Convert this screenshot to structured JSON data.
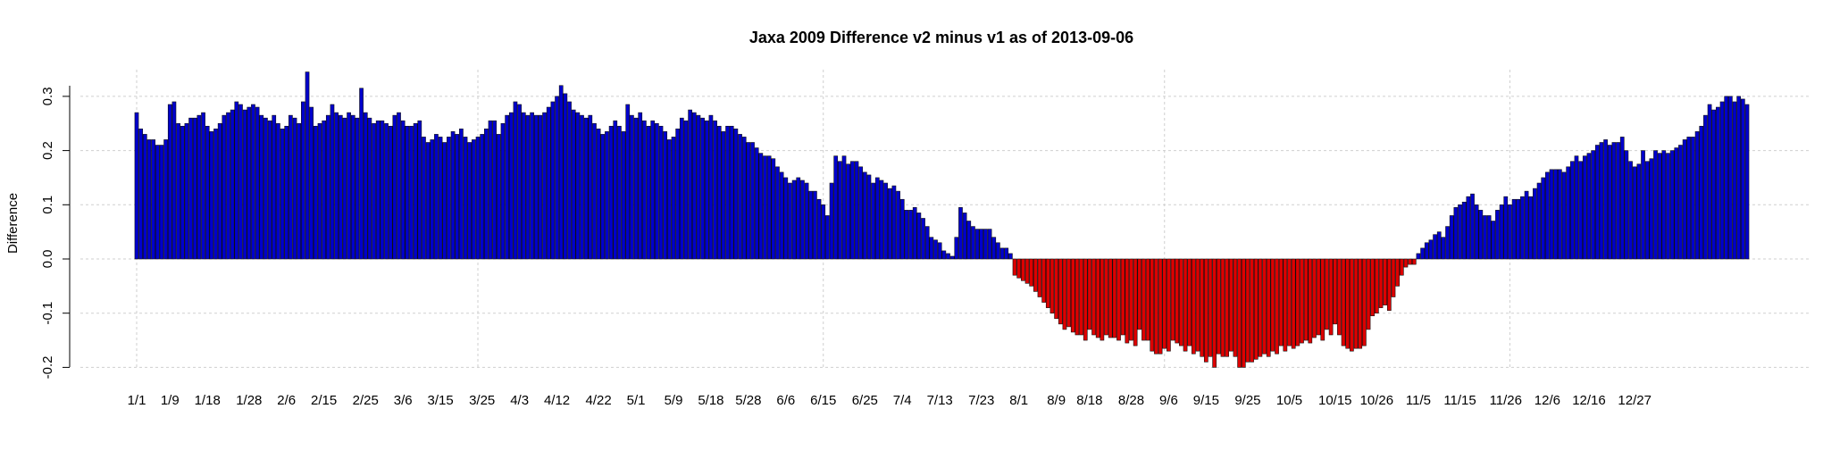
{
  "chart_data": {
    "type": "bar",
    "title": "Jaxa 2009 Difference v2 minus v1 as of 2013-09-06",
    "xlabel": "",
    "ylabel": "Difference",
    "ylim": [
      -0.2,
      0.3
    ],
    "yticks": [
      -0.2,
      -0.1,
      0.0,
      0.1,
      0.2,
      0.3
    ],
    "ytick_labels": [
      "-0.2",
      "-0.1",
      "0.0",
      "0.1",
      "0.2",
      "0.3"
    ],
    "xtick_days": [
      1,
      9,
      18,
      28,
      37,
      46,
      56,
      65,
      74,
      84,
      93,
      102,
      112,
      121,
      130,
      139,
      148,
      157,
      166,
      176,
      185,
      194,
      204,
      213,
      222,
      230,
      240,
      249,
      258,
      268,
      278,
      289,
      299,
      309,
      319,
      330,
      340,
      350,
      361
    ],
    "xtick_labels": [
      "1/1",
      "1/9",
      "1/18",
      "1/28",
      "2/6",
      "2/15",
      "2/25",
      "3/6",
      "3/15",
      "3/25",
      "4/3",
      "4/12",
      "4/22",
      "5/1",
      "5/9",
      "5/18",
      "5/28",
      "6/6",
      "6/15",
      "6/25",
      "7/4",
      "7/13",
      "7/23",
      "8/1",
      "8/9",
      "8/18",
      "8/28",
      "9/6",
      "9/15",
      "9/25",
      "10/5",
      "10/15",
      "10/26",
      "11/5",
      "11/15",
      "11/26",
      "12/6",
      "12/16",
      "12/27"
    ],
    "grid": true,
    "positive_color": "#0000cc",
    "negative_color": "#dd0000",
    "series": [
      {
        "name": "Difference",
        "x_start_label": "1/1",
        "values": [
          0.27,
          0.24,
          0.23,
          0.22,
          0.22,
          0.21,
          0.21,
          0.22,
          0.285,
          0.29,
          0.25,
          0.245,
          0.25,
          0.26,
          0.26,
          0.265,
          0.27,
          0.245,
          0.235,
          0.24,
          0.25,
          0.265,
          0.27,
          0.275,
          0.29,
          0.285,
          0.275,
          0.28,
          0.285,
          0.28,
          0.265,
          0.26,
          0.255,
          0.265,
          0.25,
          0.24,
          0.245,
          0.265,
          0.26,
          0.25,
          0.29,
          0.345,
          0.28,
          0.245,
          0.25,
          0.255,
          0.265,
          0.285,
          0.27,
          0.265,
          0.26,
          0.27,
          0.265,
          0.26,
          0.315,
          0.27,
          0.26,
          0.25,
          0.255,
          0.255,
          0.25,
          0.245,
          0.265,
          0.27,
          0.255,
          0.245,
          0.245,
          0.25,
          0.255,
          0.225,
          0.215,
          0.22,
          0.23,
          0.225,
          0.215,
          0.225,
          0.235,
          0.23,
          0.24,
          0.225,
          0.215,
          0.22,
          0.225,
          0.23,
          0.24,
          0.255,
          0.255,
          0.23,
          0.25,
          0.265,
          0.27,
          0.29,
          0.285,
          0.27,
          0.265,
          0.27,
          0.265,
          0.265,
          0.27,
          0.28,
          0.29,
          0.3,
          0.32,
          0.305,
          0.29,
          0.275,
          0.27,
          0.265,
          0.26,
          0.265,
          0.25,
          0.24,
          0.23,
          0.235,
          0.245,
          0.255,
          0.245,
          0.235,
          0.285,
          0.265,
          0.26,
          0.27,
          0.255,
          0.245,
          0.255,
          0.25,
          0.245,
          0.235,
          0.22,
          0.225,
          0.24,
          0.26,
          0.255,
          0.275,
          0.27,
          0.265,
          0.26,
          0.255,
          0.265,
          0.255,
          0.245,
          0.235,
          0.245,
          0.245,
          0.24,
          0.23,
          0.225,
          0.215,
          0.215,
          0.205,
          0.195,
          0.19,
          0.19,
          0.185,
          0.17,
          0.16,
          0.15,
          0.14,
          0.145,
          0.15,
          0.145,
          0.14,
          0.125,
          0.125,
          0.11,
          0.1,
          0.08,
          0.14,
          0.19,
          0.18,
          0.19,
          0.175,
          0.18,
          0.18,
          0.17,
          0.16,
          0.155,
          0.14,
          0.15,
          0.145,
          0.14,
          0.13,
          0.135,
          0.125,
          0.11,
          0.09,
          0.09,
          0.095,
          0.085,
          0.075,
          0.06,
          0.04,
          0.035,
          0.03,
          0.015,
          0.01,
          0.005,
          0.04,
          0.095,
          0.085,
          0.07,
          0.06,
          0.055,
          0.055,
          0.055,
          0.055,
          0.04,
          0.03,
          0.02,
          0.02,
          0.01,
          -0.03,
          -0.035,
          -0.04,
          -0.045,
          -0.05,
          -0.06,
          -0.07,
          -0.08,
          -0.09,
          -0.1,
          -0.11,
          -0.12,
          -0.13,
          -0.125,
          -0.135,
          -0.14,
          -0.14,
          -0.15,
          -0.13,
          -0.14,
          -0.145,
          -0.15,
          -0.14,
          -0.145,
          -0.145,
          -0.15,
          -0.14,
          -0.155,
          -0.15,
          -0.16,
          -0.13,
          -0.15,
          -0.15,
          -0.17,
          -0.175,
          -0.175,
          -0.165,
          -0.17,
          -0.15,
          -0.155,
          -0.16,
          -0.17,
          -0.16,
          -0.175,
          -0.17,
          -0.18,
          -0.19,
          -0.18,
          -0.2,
          -0.175,
          -0.18,
          -0.18,
          -0.17,
          -0.18,
          -0.2,
          -0.2,
          -0.19,
          -0.19,
          -0.185,
          -0.18,
          -0.175,
          -0.18,
          -0.17,
          -0.175,
          -0.16,
          -0.17,
          -0.16,
          -0.165,
          -0.16,
          -0.155,
          -0.15,
          -0.155,
          -0.145,
          -0.14,
          -0.15,
          -0.13,
          -0.14,
          -0.12,
          -0.14,
          -0.16,
          -0.165,
          -0.17,
          -0.165,
          -0.165,
          -0.16,
          -0.13,
          -0.105,
          -0.1,
          -0.09,
          -0.085,
          -0.095,
          -0.07,
          -0.05,
          -0.03,
          -0.015,
          -0.01,
          -0.01,
          0.01,
          0.02,
          0.03,
          0.035,
          0.045,
          0.05,
          0.04,
          0.06,
          0.08,
          0.095,
          0.1,
          0.105,
          0.115,
          0.12,
          0.1,
          0.09,
          0.08,
          0.08,
          0.07,
          0.09,
          0.1,
          0.115,
          0.1,
          0.11,
          0.11,
          0.115,
          0.125,
          0.115,
          0.13,
          0.14,
          0.15,
          0.16,
          0.165,
          0.165,
          0.165,
          0.16,
          0.17,
          0.18,
          0.19,
          0.18,
          0.19,
          0.195,
          0.2,
          0.21,
          0.215,
          0.22,
          0.21,
          0.215,
          0.215,
          0.225,
          0.2,
          0.18,
          0.17,
          0.175,
          0.2,
          0.18,
          0.185,
          0.2,
          0.195,
          0.2,
          0.195,
          0.2,
          0.205,
          0.21,
          0.22,
          0.225,
          0.225,
          0.235,
          0.245,
          0.265,
          0.285,
          0.275,
          0.28,
          0.29,
          0.3,
          0.3,
          0.29,
          0.3,
          0.295,
          0.285
        ]
      }
    ]
  }
}
